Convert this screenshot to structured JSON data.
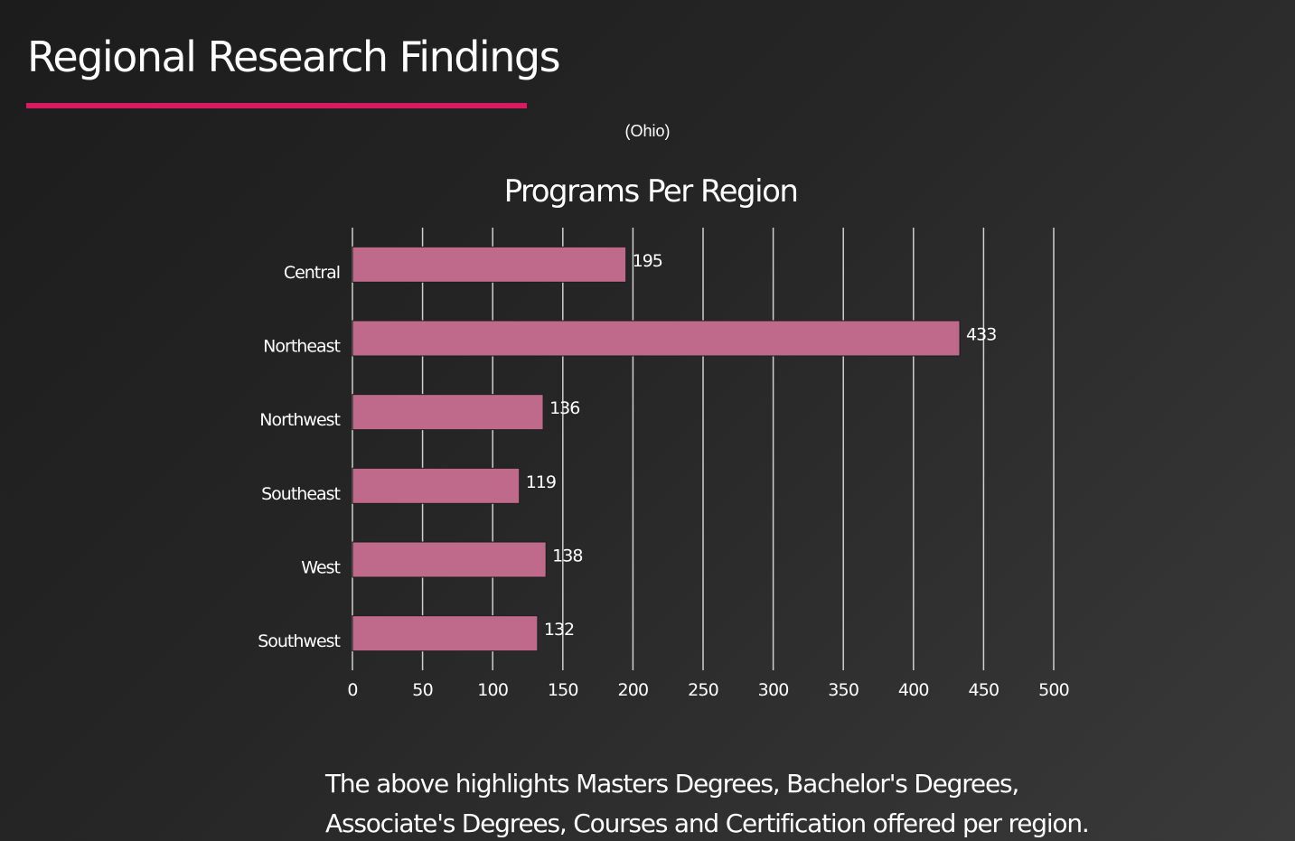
{
  "slide": {
    "title": "Regional Research Findings",
    "subtitle": "(Ohio)",
    "accent_color": "#d81b60",
    "caption_lines": [
      "The above highlights Masters Degrees, Bachelor's Degrees,",
      "Associate's Degrees, Courses and Certification offered per region."
    ]
  },
  "chart_data": {
    "type": "bar",
    "orientation": "horizontal",
    "title": "Programs Per Region",
    "categories": [
      "Central",
      "Northeast",
      "Northwest",
      "Southeast",
      "West",
      "Southwest"
    ],
    "values": [
      195,
      433,
      136,
      119,
      138,
      132
    ],
    "data_labels": [
      "195",
      "433",
      "136",
      "119",
      "138",
      "132"
    ],
    "xlim": [
      0,
      500
    ],
    "x_ticks": [
      0,
      50,
      100,
      150,
      200,
      250,
      300,
      350,
      400,
      450,
      500
    ],
    "grid": "vertical",
    "bar_color": "#bf6a8b",
    "legend": "none"
  }
}
